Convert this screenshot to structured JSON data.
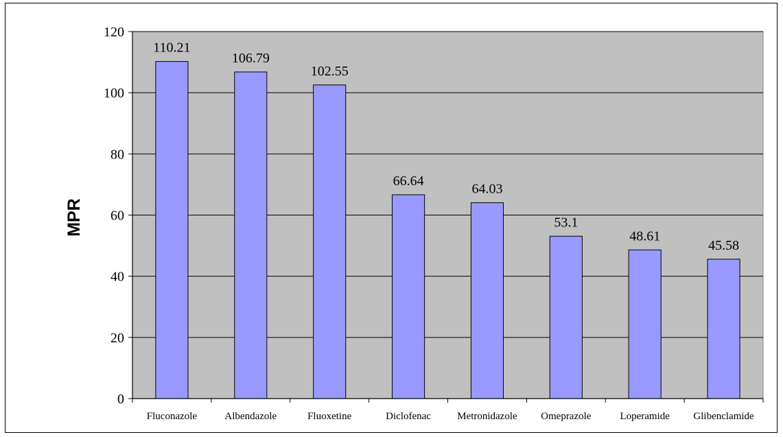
{
  "chart_data": {
    "type": "bar",
    "title": "",
    "xlabel": "",
    "ylabel": "MPR",
    "ylim": [
      0,
      120
    ],
    "yticks": [
      0,
      20,
      40,
      60,
      80,
      100,
      120
    ],
    "grid": true,
    "legend": "none",
    "categories": [
      "Fluconazole",
      "Albendazole",
      "Fluoxetine",
      "Diclofenac",
      "Metronidazole",
      "Omeprazole",
      "Loperamide",
      "Glibenclamide"
    ],
    "values": [
      110.21,
      106.79,
      102.55,
      66.64,
      64.03,
      53.1,
      48.61,
      45.58
    ],
    "value_labels": [
      "110.21",
      "106.79",
      "102.55",
      "66.64",
      "64.03",
      "53.1",
      "48.61",
      "45.58"
    ],
    "colors": {
      "plot_background": "#c0c0c0",
      "bar_fill": "#9999ff",
      "bar_stroke": "#000000",
      "gridline": "#000000"
    }
  }
}
